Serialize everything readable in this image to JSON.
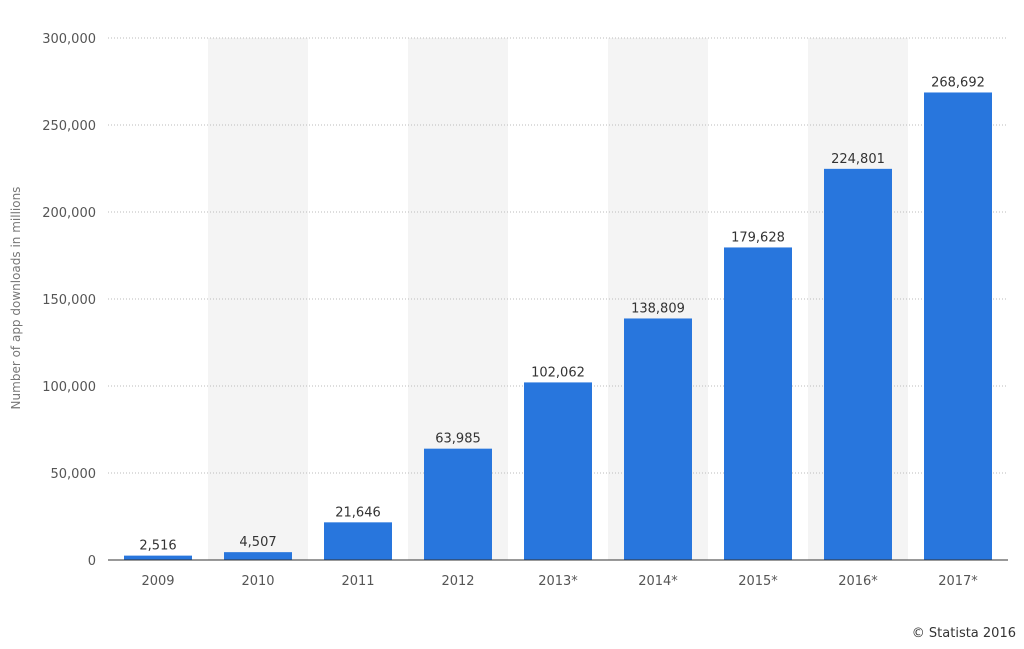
{
  "chart_data": {
    "type": "bar",
    "categories": [
      "2009",
      "2010",
      "2011",
      "2012",
      "2013*",
      "2014*",
      "2015*",
      "2016*",
      "2017*"
    ],
    "values": [
      2516,
      4507,
      21646,
      63985,
      102062,
      138809,
      179628,
      224801,
      268692
    ],
    "value_labels": [
      "2,516",
      "4,507",
      "21,646",
      "63,985",
      "102,062",
      "138,809",
      "179,628",
      "224,801",
      "268,692"
    ],
    "ylabel": "Number of app downloads in millions",
    "xlabel": "",
    "ylim": [
      0,
      300000
    ],
    "yticks": [
      0,
      50000,
      100000,
      150000,
      200000,
      250000,
      300000
    ],
    "ytick_labels": [
      "0",
      "50,000",
      "100,000",
      "150,000",
      "200,000",
      "250,000",
      "300,000"
    ],
    "grid": true,
    "bar_color": "#2876dd",
    "band_color": "#f4f4f4",
    "grid_color": "#bbbbbb"
  },
  "credit": "© Statista 2016"
}
